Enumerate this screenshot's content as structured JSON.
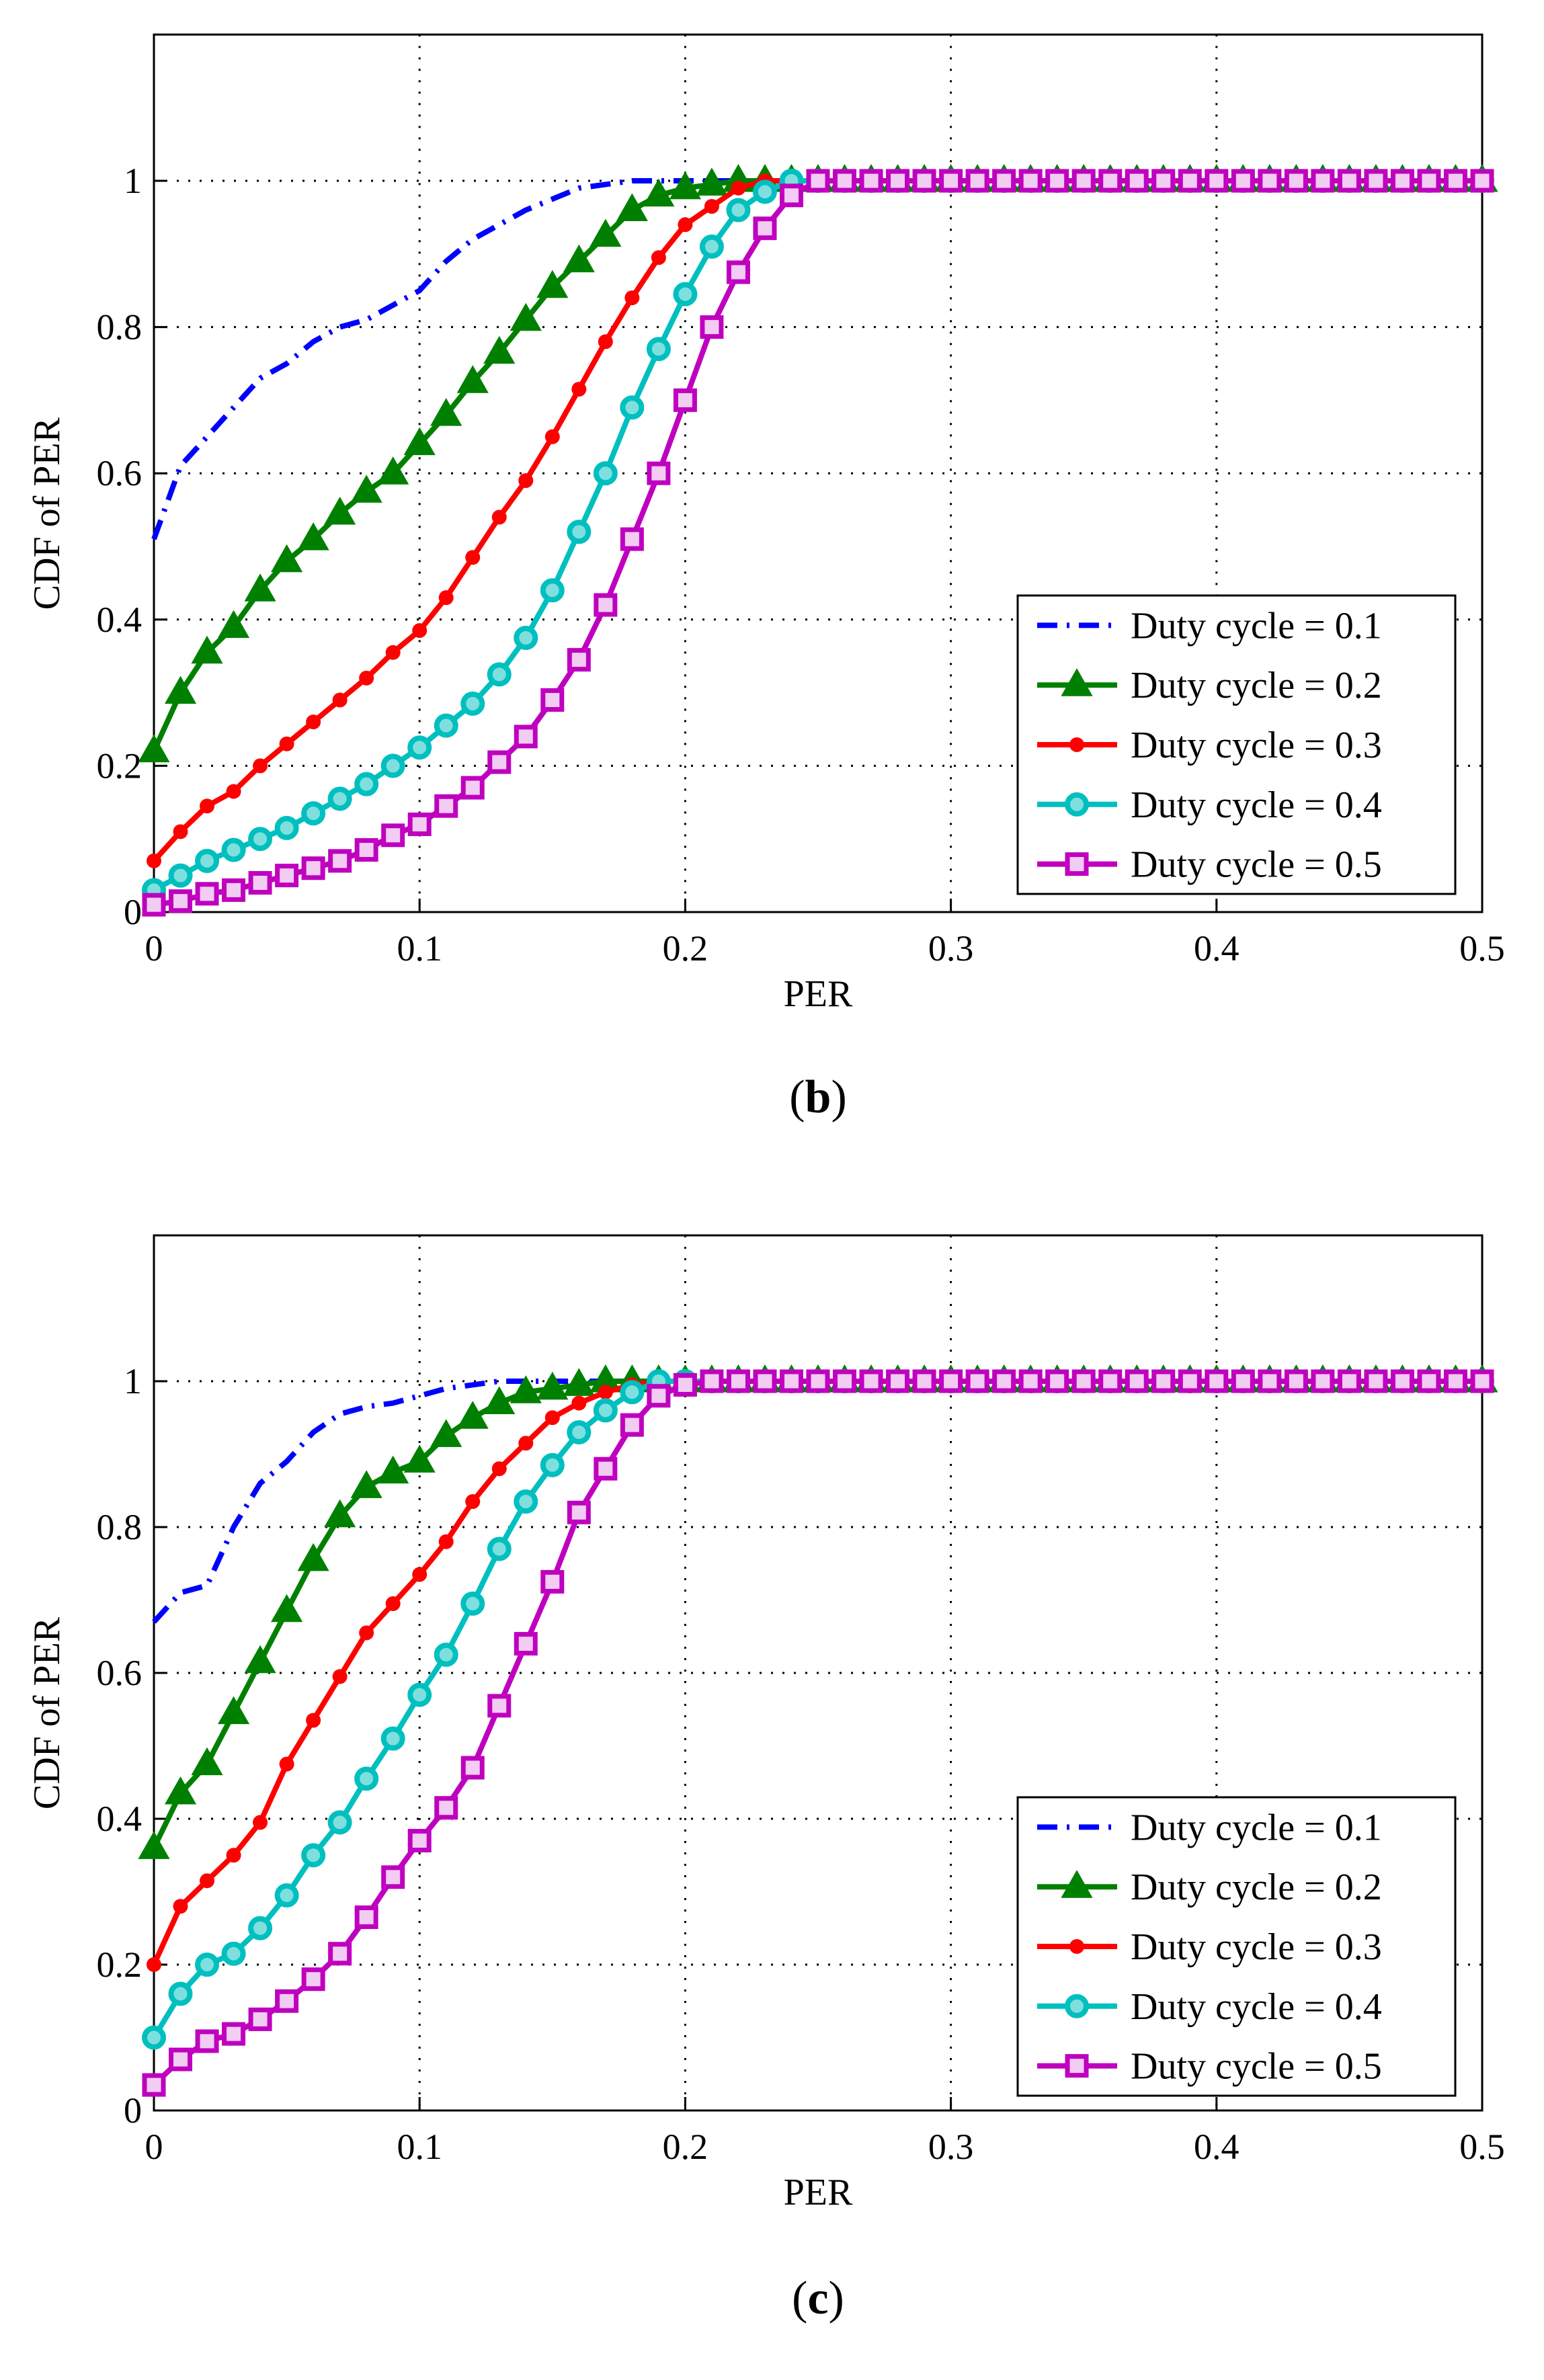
{
  "chart_data": [
    {
      "type": "line",
      "panel_label": "(b)",
      "caption_letter": "b",
      "xlabel": "PER",
      "ylabel": "CDF of PER",
      "xlim": [
        0,
        0.5
      ],
      "ylim": [
        0,
        1.2
      ],
      "xticks": [
        "0",
        "0.1",
        "0.2",
        "0.3",
        "0.4",
        "0.5"
      ],
      "yticks": [
        "0",
        "0.2",
        "0.4",
        "0.6",
        "0.8",
        "1"
      ],
      "grid": true,
      "legend_position": "bottom-right",
      "x_step": 0.01,
      "series": [
        {
          "name": "Duty cycle = 0.1",
          "color": "#0000ff",
          "style": "dashdot",
          "marker": "none",
          "values": [
            0.51,
            0.61,
            0.65,
            0.69,
            0.73,
            0.75,
            0.78,
            0.8,
            0.81,
            0.83,
            0.85,
            0.89,
            0.92,
            0.94,
            0.96,
            0.975,
            0.99,
            0.995,
            1
          ]
        },
        {
          "name": "Duty cycle = 0.2",
          "color": "#008000",
          "style": "solid",
          "marker": "triangle",
          "values": [
            0.22,
            0.3,
            0.355,
            0.39,
            0.44,
            0.48,
            0.51,
            0.545,
            0.575,
            0.6,
            0.64,
            0.68,
            0.725,
            0.765,
            0.81,
            0.855,
            0.89,
            0.925,
            0.96,
            0.98,
            0.99,
            0.995,
            1
          ]
        },
        {
          "name": "Duty cycle = 0.3",
          "color": "#ff0000",
          "style": "solid",
          "marker": "dot",
          "values": [
            0.07,
            0.11,
            0.145,
            0.165,
            0.2,
            0.23,
            0.26,
            0.29,
            0.32,
            0.355,
            0.385,
            0.43,
            0.485,
            0.54,
            0.59,
            0.65,
            0.715,
            0.78,
            0.84,
            0.895,
            0.94,
            0.965,
            0.99,
            1
          ]
        },
        {
          "name": "Duty cycle = 0.4",
          "color": "#00bfbf",
          "style": "solid",
          "marker": "circle",
          "values": [
            0.03,
            0.05,
            0.07,
            0.085,
            0.1,
            0.115,
            0.135,
            0.155,
            0.175,
            0.2,
            0.225,
            0.255,
            0.285,
            0.325,
            0.375,
            0.44,
            0.52,
            0.6,
            0.69,
            0.77,
            0.845,
            0.91,
            0.96,
            0.985,
            1
          ]
        },
        {
          "name": "Duty cycle = 0.5",
          "color": "#bf00bf",
          "style": "solid",
          "marker": "square",
          "values": [
            0.01,
            0.015,
            0.025,
            0.03,
            0.04,
            0.05,
            0.06,
            0.07,
            0.085,
            0.105,
            0.12,
            0.145,
            0.17,
            0.205,
            0.24,
            0.29,
            0.345,
            0.42,
            0.51,
            0.6,
            0.7,
            0.8,
            0.875,
            0.935,
            0.98,
            1
          ]
        }
      ]
    },
    {
      "type": "line",
      "panel_label": "(c)",
      "caption_letter": "c",
      "xlabel": "PER",
      "ylabel": "CDF of PER",
      "xlim": [
        0,
        0.5
      ],
      "ylim": [
        0,
        1.2
      ],
      "xticks": [
        "0",
        "0.1",
        "0.2",
        "0.3",
        "0.4",
        "0.5"
      ],
      "yticks": [
        "0",
        "0.2",
        "0.4",
        "0.6",
        "0.8",
        "1"
      ],
      "grid": true,
      "legend_position": "bottom-right",
      "x_step": 0.01,
      "series": [
        {
          "name": "Duty cycle = 0.1",
          "color": "#0000ff",
          "style": "dashdot",
          "marker": "none",
          "values": [
            0.67,
            0.71,
            0.72,
            0.8,
            0.86,
            0.89,
            0.93,
            0.955,
            0.965,
            0.97,
            0.98,
            0.99,
            0.995,
            1
          ]
        },
        {
          "name": "Duty cycle = 0.2",
          "color": "#008000",
          "style": "solid",
          "marker": "triangle",
          "values": [
            0.36,
            0.435,
            0.475,
            0.545,
            0.615,
            0.685,
            0.755,
            0.815,
            0.855,
            0.875,
            0.89,
            0.925,
            0.95,
            0.97,
            0.985,
            0.99,
            0.995,
            1
          ]
        },
        {
          "name": "Duty cycle = 0.3",
          "color": "#ff0000",
          "style": "solid",
          "marker": "dot",
          "values": [
            0.2,
            0.28,
            0.315,
            0.35,
            0.395,
            0.475,
            0.535,
            0.595,
            0.655,
            0.695,
            0.735,
            0.78,
            0.835,
            0.88,
            0.915,
            0.95,
            0.97,
            0.985,
            0.995,
            1
          ]
        },
        {
          "name": "Duty cycle = 0.4",
          "color": "#00bfbf",
          "style": "solid",
          "marker": "circle",
          "values": [
            0.1,
            0.16,
            0.2,
            0.215,
            0.25,
            0.295,
            0.35,
            0.395,
            0.455,
            0.51,
            0.57,
            0.625,
            0.695,
            0.77,
            0.835,
            0.885,
            0.93,
            0.96,
            0.985,
            1
          ]
        },
        {
          "name": "Duty cycle = 0.5",
          "color": "#bf00bf",
          "style": "solid",
          "marker": "square",
          "values": [
            0.035,
            0.07,
            0.095,
            0.105,
            0.125,
            0.15,
            0.18,
            0.215,
            0.265,
            0.32,
            0.37,
            0.415,
            0.47,
            0.555,
            0.64,
            0.725,
            0.82,
            0.88,
            0.94,
            0.98,
            0.995,
            1
          ]
        }
      ]
    }
  ]
}
